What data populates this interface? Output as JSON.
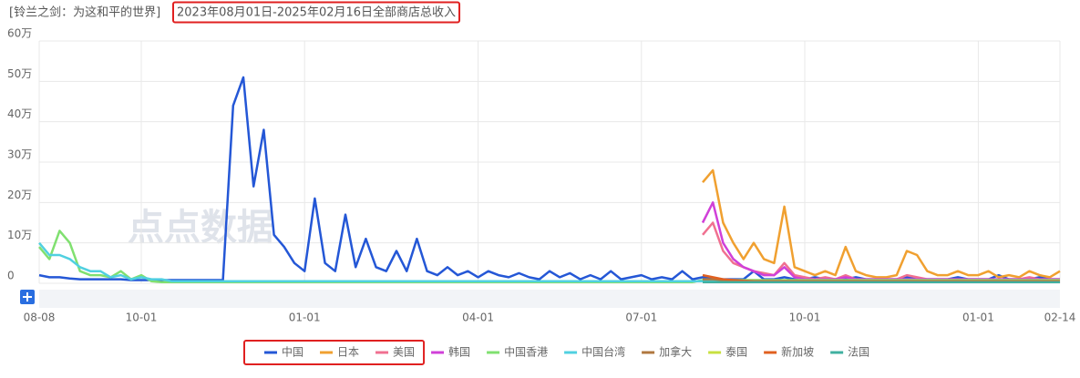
{
  "chart_data": {
    "type": "line",
    "title": "[铃兰之剑：为这和平的世界]",
    "subtitle": "2023年08月01日-2025年02月16日全部商店总收入",
    "watermark": "点点数据",
    "categories": [
      "08-08",
      null,
      null,
      null,
      null,
      null,
      null,
      null,
      null,
      null,
      "10-01",
      null,
      null,
      null,
      null,
      null,
      null,
      null,
      null,
      null,
      null,
      null,
      null,
      null,
      null,
      null,
      "01-01",
      null,
      null,
      null,
      null,
      null,
      null,
      null,
      null,
      null,
      null,
      null,
      null,
      null,
      null,
      null,
      null,
      "04-01",
      null,
      null,
      null,
      null,
      null,
      null,
      null,
      null,
      null,
      null,
      null,
      null,
      null,
      null,
      null,
      "07-01",
      null,
      null,
      null,
      null,
      null,
      null,
      null,
      null,
      null,
      null,
      null,
      null,
      null,
      null,
      null,
      "10-01",
      null,
      null,
      null,
      null,
      null,
      null,
      null,
      null,
      null,
      null,
      null,
      null,
      null,
      null,
      null,
      null,
      "01-01",
      null,
      null,
      null,
      null,
      null,
      null,
      null,
      "02-14"
    ],
    "ylim": [
      0,
      60
    ],
    "yticks": [
      0,
      {
        "value": 10,
        "label": "10万"
      },
      {
        "value": 20,
        "label": "20万"
      },
      {
        "value": 30,
        "label": "30万"
      },
      {
        "value": 40,
        "label": "40万"
      },
      {
        "value": 50,
        "label": "50万"
      },
      {
        "value": 60,
        "label": "60万"
      }
    ],
    "grid": true,
    "legend": "bottom",
    "series": [
      {
        "name": "中国",
        "color": "#2457d6",
        "values": [
          2,
          1.5,
          1.5,
          1.2,
          1,
          1,
          1,
          1,
          1,
          0.8,
          0.8,
          0.8,
          0.8,
          0.8,
          0.8,
          0.8,
          0.8,
          0.8,
          0.8,
          44,
          51,
          24,
          38,
          12,
          9,
          5,
          3,
          21,
          5,
          3,
          17,
          4,
          11,
          4,
          3,
          8,
          3,
          11,
          3,
          2,
          4,
          2,
          3,
          1.5,
          3,
          2,
          1.5,
          2.5,
          1.5,
          1,
          3,
          1.5,
          2.5,
          1,
          2,
          1,
          3,
          1,
          1.5,
          2,
          1,
          1.5,
          1,
          3,
          1,
          1.5,
          1,
          1,
          1,
          1,
          3,
          1,
          1,
          1.5,
          1,
          1,
          1.5,
          1,
          1,
          1,
          1.5,
          1,
          1,
          1,
          1,
          1.5,
          1,
          1,
          1,
          1,
          1.5,
          1,
          1,
          1,
          2,
          1,
          1,
          1,
          1.5,
          1,
          1
        ]
      },
      {
        "name": "日本",
        "color": "#f0a030",
        "values": [
          null,
          null,
          null,
          null,
          null,
          null,
          null,
          null,
          null,
          null,
          null,
          null,
          null,
          null,
          null,
          null,
          null,
          null,
          null,
          null,
          null,
          null,
          null,
          null,
          null,
          null,
          null,
          null,
          null,
          null,
          null,
          null,
          null,
          null,
          null,
          null,
          null,
          null,
          null,
          null,
          null,
          null,
          null,
          null,
          null,
          null,
          null,
          null,
          null,
          null,
          null,
          null,
          null,
          null,
          null,
          null,
          null,
          null,
          null,
          null,
          null,
          null,
          null,
          null,
          null,
          25,
          28,
          15,
          10,
          6,
          10,
          6,
          5,
          19,
          4,
          3,
          2,
          3,
          2,
          9,
          3,
          2,
          1.5,
          1.5,
          2,
          8,
          7,
          3,
          2,
          2,
          3,
          2,
          2,
          3,
          1.5,
          2,
          1.5,
          3,
          2,
          1.5,
          3
        ]
      },
      {
        "name": "美国",
        "color": "#f07090",
        "values": [
          null,
          null,
          null,
          null,
          null,
          null,
          null,
          null,
          null,
          null,
          null,
          null,
          null,
          null,
          null,
          null,
          null,
          null,
          null,
          null,
          null,
          null,
          null,
          null,
          null,
          null,
          null,
          null,
          null,
          null,
          null,
          null,
          null,
          null,
          null,
          null,
          null,
          null,
          null,
          null,
          null,
          null,
          null,
          null,
          null,
          null,
          null,
          null,
          null,
          null,
          null,
          null,
          null,
          null,
          null,
          null,
          null,
          null,
          null,
          null,
          null,
          null,
          null,
          null,
          null,
          12,
          15,
          8,
          5,
          4,
          3,
          2.5,
          2,
          5,
          2,
          1.5,
          1,
          1.5,
          1,
          2,
          1,
          1,
          1,
          1,
          1,
          2,
          1.5,
          1,
          1,
          1,
          1,
          1,
          1,
          1,
          1,
          1,
          1,
          1.5,
          1,
          1,
          1
        ]
      },
      {
        "name": "韩国",
        "color": "#d040d8",
        "values": [
          null,
          null,
          null,
          null,
          null,
          null,
          null,
          null,
          null,
          null,
          null,
          null,
          null,
          null,
          null,
          null,
          null,
          null,
          null,
          null,
          null,
          null,
          null,
          null,
          null,
          null,
          null,
          null,
          null,
          null,
          null,
          null,
          null,
          null,
          null,
          null,
          null,
          null,
          null,
          null,
          null,
          null,
          null,
          null,
          null,
          null,
          null,
          null,
          null,
          null,
          null,
          null,
          null,
          null,
          null,
          null,
          null,
          null,
          null,
          null,
          null,
          null,
          null,
          null,
          null,
          15,
          20,
          10,
          6,
          4,
          3,
          2,
          2,
          4,
          1.5,
          1,
          1,
          1,
          1,
          1.5,
          1,
          1,
          1,
          1,
          1,
          1,
          1,
          1,
          1,
          1,
          1,
          1,
          1,
          1,
          1,
          1,
          1,
          1,
          1,
          1,
          1
        ]
      },
      {
        "name": "中国香港",
        "color": "#80e070",
        "values": [
          9,
          6,
          13,
          10,
          3,
          2,
          2,
          1.5,
          3,
          1,
          2,
          0.5,
          0.3,
          0.3,
          0.3,
          0.3,
          0.3,
          0.3,
          0.3,
          0.3,
          0.3,
          0.3,
          0.3,
          0.3,
          0.3,
          0.3,
          0.3,
          0.3,
          0.3,
          0.3,
          0.3,
          0.3,
          0.3,
          0.3,
          0.3,
          0.3,
          0.3,
          0.3,
          0.3,
          0.3,
          0.3,
          0.3,
          0.3,
          0.3,
          0.3,
          0.3,
          0.3,
          0.3,
          0.3,
          0.3,
          0.3,
          0.3,
          0.3,
          0.3,
          0.3,
          0.3,
          0.3,
          0.3,
          0.3,
          0.3,
          0.3,
          0.3,
          0.3,
          0.3,
          0.3,
          0.8,
          0.8,
          0.8,
          0.8,
          0.8,
          0.8,
          0.8,
          0.8,
          0.8,
          0.8,
          0.8,
          0.8,
          0.8,
          0.8,
          0.8,
          0.8,
          0.8,
          0.8,
          0.8,
          0.8,
          0.8,
          0.8,
          0.8,
          0.8,
          0.8,
          0.8,
          0.8,
          0.8,
          0.8,
          0.8,
          0.8,
          0.8,
          0.8,
          0.8,
          0.8,
          0.8
        ]
      },
      {
        "name": "中国台湾",
        "color": "#50d0e0",
        "values": [
          10,
          7,
          7,
          6,
          4,
          3,
          3,
          1.5,
          2,
          1,
          1.5,
          1,
          1,
          0.5,
          0.5,
          0.5,
          0.5,
          0.5,
          0.5,
          0.5,
          0.5,
          0.5,
          0.5,
          0.5,
          0.5,
          0.5,
          0.5,
          0.5,
          0.5,
          0.5,
          0.5,
          0.5,
          0.5,
          0.5,
          0.5,
          0.5,
          0.5,
          0.5,
          0.5,
          0.5,
          0.5,
          0.5,
          0.5,
          0.5,
          0.5,
          0.5,
          0.5,
          0.5,
          0.5,
          0.5,
          0.5,
          0.5,
          0.5,
          0.5,
          0.5,
          0.5,
          0.5,
          0.5,
          0.5,
          0.5,
          0.5,
          0.5,
          0.5,
          0.5,
          0.5,
          0.5,
          0.5,
          0.5,
          0.5,
          0.5,
          0.5,
          0.5,
          0.5,
          0.5,
          0.5,
          0.5,
          0.5,
          0.5,
          0.5,
          0.5,
          0.5,
          0.5,
          0.5,
          0.5,
          0.5,
          0.5,
          0.5,
          0.5,
          0.5,
          0.5,
          0.5,
          0.5,
          0.5,
          0.5,
          0.5,
          0.5,
          0.5,
          0.5,
          0.5,
          0.5,
          0.5
        ]
      },
      {
        "name": "加拿大",
        "color": "#b07840",
        "values": [
          null,
          null,
          null,
          null,
          null,
          null,
          null,
          null,
          null,
          null,
          null,
          null,
          null,
          null,
          null,
          null,
          null,
          null,
          null,
          null,
          null,
          null,
          null,
          null,
          null,
          null,
          null,
          null,
          null,
          null,
          null,
          null,
          null,
          null,
          null,
          null,
          null,
          null,
          null,
          null,
          null,
          null,
          null,
          null,
          null,
          null,
          null,
          null,
          null,
          null,
          null,
          null,
          null,
          null,
          null,
          null,
          null,
          null,
          null,
          null,
          null,
          null,
          null,
          null,
          null,
          1,
          1,
          0.8,
          0.6,
          0.5,
          0.5,
          0.5,
          0.5,
          0.5,
          0.5,
          0.5,
          0.5,
          0.5,
          0.5,
          0.5,
          0.5,
          0.5,
          0.5,
          0.5,
          0.5,
          0.5,
          0.5,
          0.5,
          0.5,
          0.5,
          0.5,
          0.5,
          0.5,
          0.5,
          0.5,
          0.5,
          0.5,
          0.5,
          0.5,
          0.5,
          0.5
        ]
      },
      {
        "name": "泰国",
        "color": "#c8e040",
        "values": [
          null,
          null,
          null,
          null,
          null,
          null,
          null,
          null,
          null,
          null,
          null,
          null,
          null,
          null,
          null,
          null,
          null,
          null,
          null,
          null,
          null,
          null,
          null,
          null,
          null,
          null,
          null,
          null,
          null,
          null,
          null,
          null,
          null,
          null,
          null,
          null,
          null,
          null,
          null,
          null,
          null,
          null,
          null,
          null,
          null,
          null,
          null,
          null,
          null,
          null,
          null,
          null,
          null,
          null,
          null,
          null,
          null,
          null,
          null,
          null,
          null,
          null,
          null,
          null,
          null,
          0.3,
          0.3,
          0.3,
          0.3,
          0.3,
          0.3,
          0.3,
          0.3,
          0.3,
          0.3,
          0.3,
          0.3,
          0.3,
          0.3,
          0.3,
          0.3,
          0.3,
          0.3,
          0.3,
          0.3,
          0.3,
          0.3,
          0.3,
          0.3,
          0.3,
          0.3,
          0.3,
          0.3,
          0.3,
          0.3,
          0.3,
          0.3,
          0.3,
          0.3,
          0.3,
          0.3
        ]
      },
      {
        "name": "新加坡",
        "color": "#e06020",
        "values": [
          null,
          null,
          null,
          null,
          null,
          null,
          null,
          null,
          null,
          null,
          null,
          null,
          null,
          null,
          null,
          null,
          null,
          null,
          null,
          null,
          null,
          null,
          null,
          null,
          null,
          null,
          null,
          null,
          null,
          null,
          null,
          null,
          null,
          null,
          null,
          null,
          null,
          null,
          null,
          null,
          null,
          null,
          null,
          null,
          null,
          null,
          null,
          null,
          null,
          null,
          null,
          null,
          null,
          null,
          null,
          null,
          null,
          null,
          null,
          null,
          null,
          null,
          null,
          null,
          null,
          2,
          1.5,
          1,
          0.8,
          0.6,
          0.5,
          0.5,
          0.5,
          0.5,
          0.5,
          0.5,
          0.5,
          0.5,
          0.5,
          0.5,
          0.5,
          0.5,
          0.5,
          0.5,
          0.5,
          0.5,
          0.5,
          0.5,
          0.5,
          0.5,
          0.5,
          0.5,
          0.5,
          0.5,
          0.5,
          0.5,
          0.5,
          0.5,
          0.5,
          0.5,
          0.5
        ]
      },
      {
        "name": "法国",
        "color": "#40b0a0",
        "values": [
          null,
          null,
          null,
          null,
          null,
          null,
          null,
          null,
          null,
          null,
          null,
          null,
          null,
          null,
          null,
          null,
          null,
          null,
          null,
          null,
          null,
          null,
          null,
          null,
          null,
          null,
          null,
          null,
          null,
          null,
          null,
          null,
          null,
          null,
          null,
          null,
          null,
          null,
          null,
          null,
          null,
          null,
          null,
          null,
          null,
          null,
          null,
          null,
          null,
          null,
          null,
          null,
          null,
          null,
          null,
          null,
          null,
          null,
          null,
          null,
          null,
          null,
          null,
          null,
          null,
          0.3,
          0.3,
          0.3,
          0.3,
          0.3,
          0.3,
          0.3,
          0.3,
          0.3,
          0.3,
          0.3,
          0.3,
          0.3,
          0.3,
          0.3,
          0.3,
          0.3,
          0.3,
          0.3,
          0.3,
          0.3,
          0.3,
          0.3,
          0.3,
          0.3,
          0.3,
          0.3,
          0.3,
          0.3,
          0.3,
          0.3,
          0.3,
          0.3,
          0.3,
          0.3,
          0.3
        ]
      }
    ]
  }
}
